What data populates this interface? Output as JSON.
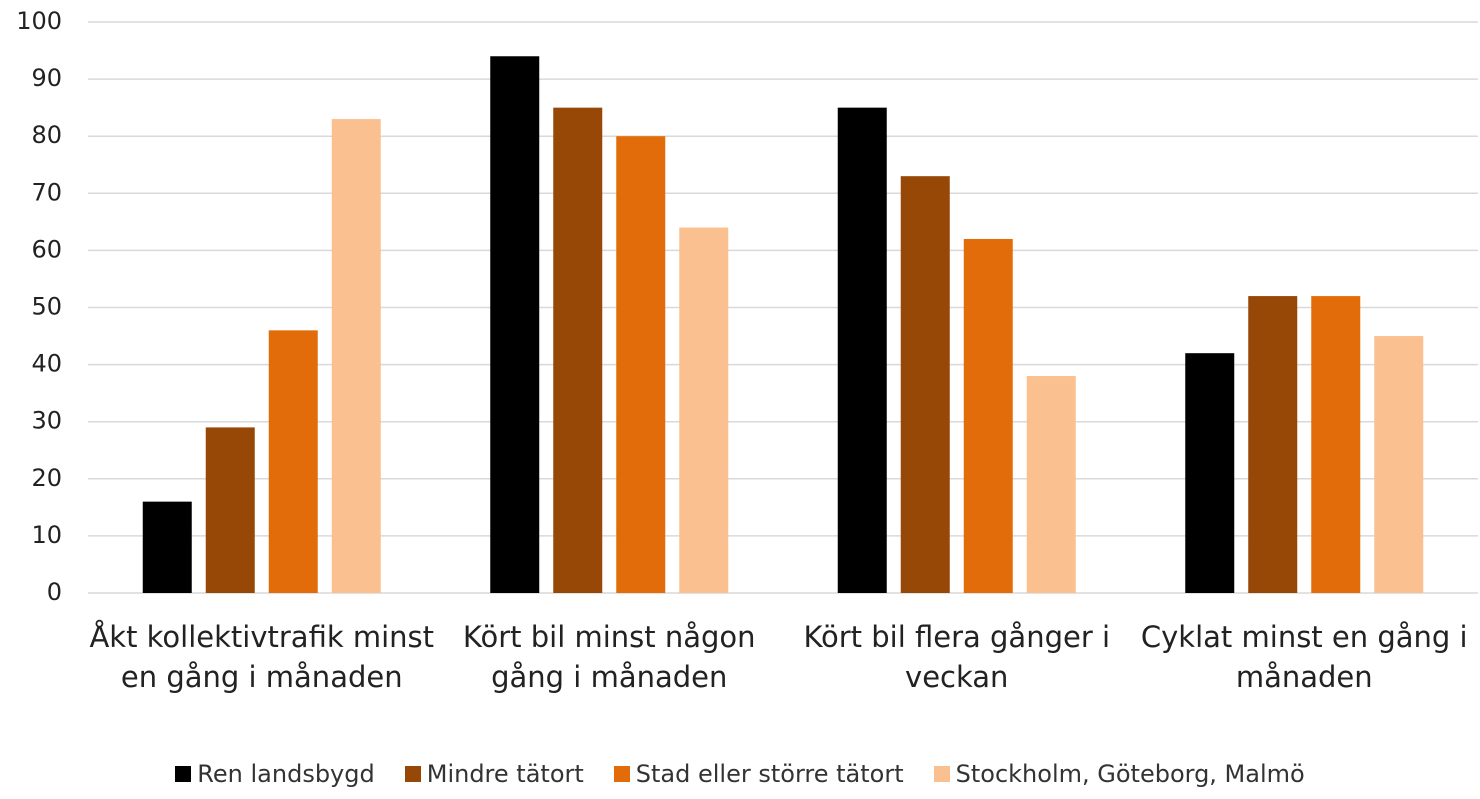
{
  "chart_data": {
    "type": "bar",
    "categories": [
      "Åkt kollektivtrafik minst en gång i månaden",
      "Kört bil minst någon gång i månaden",
      "Kört bil flera gånger i veckan",
      "Cyklat minst en gång i månaden"
    ],
    "series": [
      {
        "name": "Ren landsbygd",
        "color": "#000000",
        "values": [
          16,
          94,
          85,
          42
        ]
      },
      {
        "name": "Mindre tätort",
        "color": "#974706",
        "values": [
          29,
          85,
          73,
          52
        ]
      },
      {
        "name": "Stad eller större tätort",
        "color": "#e36c0a",
        "values": [
          46,
          80,
          62,
          52
        ]
      },
      {
        "name": "Stockholm, Göteborg, Malmö",
        "color": "#fac090",
        "values": [
          83,
          64,
          38,
          45
        ]
      }
    ],
    "ylim": [
      0,
      100
    ],
    "yticks": [
      0,
      10,
      20,
      30,
      40,
      50,
      60,
      70,
      80,
      90,
      100
    ],
    "grid": true,
    "legend": "bottom"
  }
}
